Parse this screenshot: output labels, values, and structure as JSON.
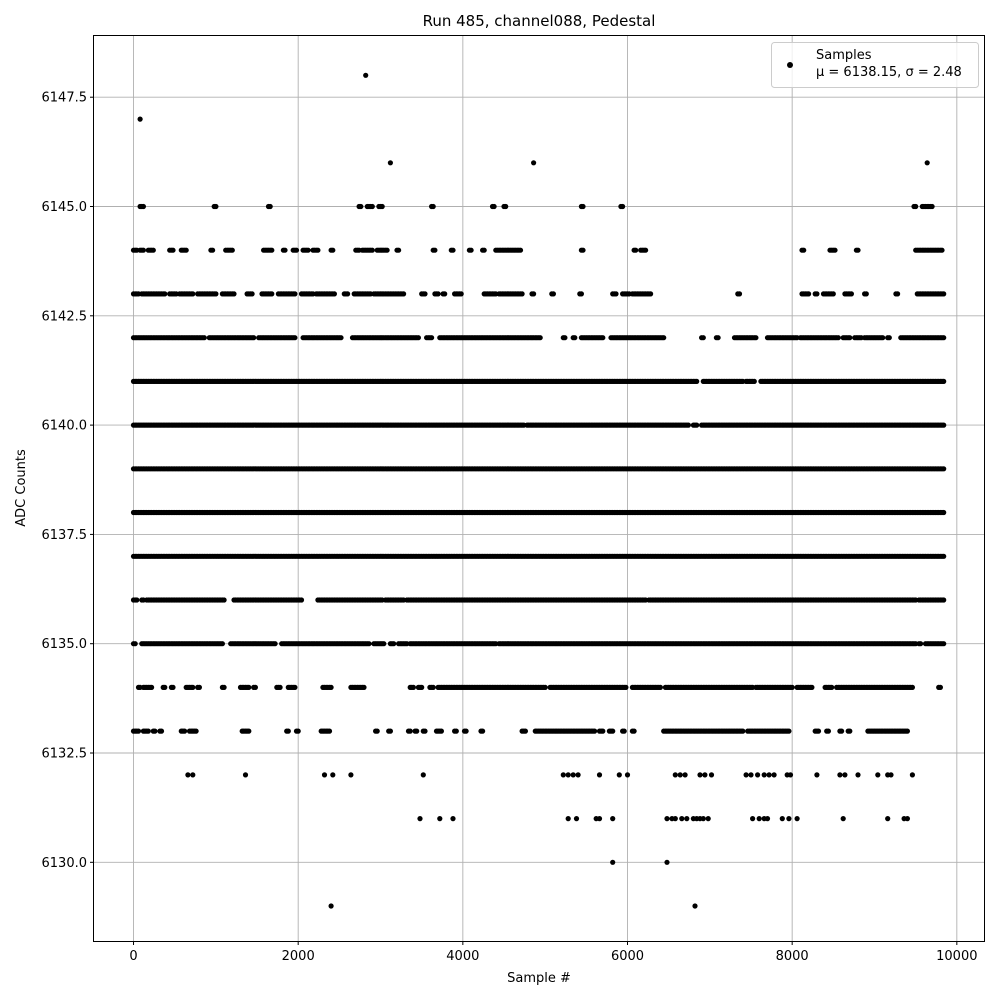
{
  "chart_data": {
    "type": "scatter",
    "title": "Run 485, channel088, Pedestal",
    "xlabel": "Sample #",
    "ylabel": "ADC Counts",
    "xlim": [
      -480,
      10330
    ],
    "ylim": [
      6128.2,
      6148.9
    ],
    "xticks": [
      0,
      2000,
      4000,
      6000,
      8000,
      10000
    ],
    "xtick_labels": [
      "0",
      "2000",
      "4000",
      "6000",
      "8000",
      "10000"
    ],
    "yticks": [
      6130.0,
      6132.5,
      6135.0,
      6137.5,
      6140.0,
      6142.5,
      6145.0,
      6147.5
    ],
    "ytick_labels": [
      "6130.0",
      "6132.5",
      "6135.0",
      "6137.5",
      "6140.0",
      "6142.5",
      "6145.0",
      "6147.5"
    ],
    "grid": true,
    "legend_position": "top-right",
    "legend": {
      "series_name": "Samples",
      "stats_label": "μ = 6138.15, σ = 2.48"
    },
    "marker_color": "#000000",
    "sample_count": 9840,
    "mean": 6138.15,
    "sigma": 2.48,
    "series": [
      {
        "name": "Samples",
        "levels": [
          {
            "y": 6129,
            "x": [
              2400,
              6820
            ]
          },
          {
            "y": 6130,
            "x": [
              5820,
              6480
            ]
          },
          {
            "y": 6131,
            "x": [
              3480,
              3720,
              3880,
              5280,
              5380,
              5620,
              5660,
              5820,
              6480,
              6540,
              6580,
              6660,
              6720,
              6800,
              6840,
              6880,
              6920,
              6980,
              7520,
              7600,
              7660,
              7700,
              7880,
              7960,
              8060,
              8620,
              9160,
              9360,
              9400
            ]
          },
          {
            "y": 6132,
            "x": [
              660,
              720,
              1360,
              2320,
              2420,
              2640,
              3520,
              5220,
              5280,
              5340,
              5400,
              5660,
              5900,
              6000,
              6580,
              6640,
              6700,
              6880,
              6940,
              7020,
              7440,
              7500,
              7580,
              7660,
              7720,
              7780,
              7940,
              7980,
              8300,
              8580,
              8640,
              8800,
              9040,
              9160,
              9200,
              9460
            ]
          },
          {
            "y": 6146,
            "x": [
              3120,
              4860,
              9640
            ]
          },
          {
            "y": 6147,
            "x": [
              80
            ]
          },
          {
            "y": 6148,
            "x": [
              2820
            ]
          }
        ],
        "bands": [
          {
            "y": 6133,
            "segments": [
              [
                0,
                60
              ],
              [
                120,
                180
              ],
              [
                240,
                260
              ],
              [
                320,
                340
              ],
              [
                580,
                620
              ],
              [
                680,
                760
              ],
              [
                1320,
                1400
              ],
              [
                1860,
                1880
              ],
              [
                1980,
                2000
              ],
              [
                2280,
                2380
              ],
              [
                2940,
                2960
              ],
              [
                3100,
                3120
              ],
              [
                3340,
                3360
              ],
              [
                3420,
                3440
              ],
              [
                3520,
                3540
              ],
              [
                3680,
                3740
              ],
              [
                3900,
                3920
              ],
              [
                4020,
                4040
              ],
              [
                4220,
                4240
              ],
              [
                4720,
                4760
              ],
              [
                4880,
                5600
              ],
              [
                5660,
                5700
              ],
              [
                5780,
                5820
              ],
              [
                5940,
                5960
              ],
              [
                6060,
                6080
              ],
              [
                6440,
                7400
              ],
              [
                7460,
                7960
              ],
              [
                8280,
                8320
              ],
              [
                8420,
                8440
              ],
              [
                8580,
                8600
              ],
              [
                8680,
                8700
              ],
              [
                8920,
                9400
              ]
            ]
          },
          {
            "y": 6134,
            "segments": [
              [
                60,
                80
              ],
              [
                120,
                180
              ],
              [
                200,
                220
              ],
              [
                360,
                380
              ],
              [
                460,
                480
              ],
              [
                640,
                720
              ],
              [
                780,
                800
              ],
              [
                1080,
                1100
              ],
              [
                1300,
                1400
              ],
              [
                1460,
                1480
              ],
              [
                1740,
                1780
              ],
              [
                1880,
                1960
              ],
              [
                2300,
                2400
              ],
              [
                2640,
                2800
              ],
              [
                3360,
                3400
              ],
              [
                3460,
                3500
              ],
              [
                3600,
                3640
              ],
              [
                3700,
                5000
              ],
              [
                5060,
                5980
              ],
              [
                6060,
                6400
              ],
              [
                6460,
                7520
              ],
              [
                7560,
                8000
              ],
              [
                8060,
                8240
              ],
              [
                8400,
                8480
              ],
              [
                8540,
                9460
              ],
              [
                9780,
                9800
              ]
            ]
          },
          {
            "y": 6135,
            "segments": [
              [
                0,
                20
              ],
              [
                100,
                1080
              ],
              [
                1180,
                1720
              ],
              [
                1800,
                2860
              ],
              [
                2920,
                3040
              ],
              [
                3120,
                3160
              ],
              [
                3220,
                3320
              ],
              [
                3360,
                4400
              ],
              [
                4440,
                9500
              ],
              [
                9540,
                9560
              ],
              [
                9620,
                9840
              ]
            ]
          },
          {
            "y": 6136,
            "segments": [
              [
                0,
                40
              ],
              [
                100,
                120
              ],
              [
                160,
                1100
              ],
              [
                1220,
                2040
              ],
              [
                2240,
                3020
              ],
              [
                3060,
                3280
              ],
              [
                3320,
                6220
              ],
              [
                6260,
                9500
              ],
              [
                9540,
                9840
              ]
            ]
          },
          {
            "y": 6137,
            "segments": [
              [
                0,
                9840
              ]
            ]
          },
          {
            "y": 6138,
            "segments": [
              [
                0,
                9840
              ]
            ]
          },
          {
            "y": 6139,
            "segments": [
              [
                0,
                9840
              ]
            ]
          },
          {
            "y": 6140,
            "segments": [
              [
                0,
                4740
              ],
              [
                4780,
                6740
              ],
              [
                6800,
                6840
              ],
              [
                6900,
                9840
              ]
            ]
          },
          {
            "y": 6141,
            "segments": [
              [
                0,
                6840
              ],
              [
                6920,
                7400
              ],
              [
                7440,
                7540
              ],
              [
                7620,
                9840
              ]
            ]
          },
          {
            "y": 6142,
            "segments": [
              [
                0,
                60
              ],
              [
                80,
                860
              ],
              [
                920,
                1460
              ],
              [
                1520,
                1960
              ],
              [
                2060,
                2520
              ],
              [
                2660,
                3460
              ],
              [
                3560,
                3620
              ],
              [
                3720,
                4940
              ],
              [
                5220,
                5240
              ],
              [
                5340,
                5360
              ],
              [
                5440,
                5700
              ],
              [
                5800,
                6440
              ],
              [
                6900,
                6920
              ],
              [
                7080,
                7100
              ],
              [
                7300,
                7560
              ],
              [
                7700,
                8060
              ],
              [
                8100,
                8560
              ],
              [
                8620,
                8700
              ],
              [
                8760,
                8840
              ],
              [
                8880,
                9100
              ],
              [
                9160,
                9180
              ],
              [
                9320,
                9840
              ]
            ]
          },
          {
            "y": 6143,
            "segments": [
              [
                0,
                60
              ],
              [
                100,
                380
              ],
              [
                440,
                520
              ],
              [
                560,
                720
              ],
              [
                780,
                1000
              ],
              [
                1080,
                1120
              ],
              [
                1140,
                1220
              ],
              [
                1380,
                1440
              ],
              [
                1560,
                1680
              ],
              [
                1760,
                1960
              ],
              [
                2040,
                2180
              ],
              [
                2220,
                2440
              ],
              [
                2560,
                2600
              ],
              [
                2680,
                2880
              ],
              [
                2920,
                3280
              ],
              [
                3500,
                3540
              ],
              [
                3660,
                3700
              ],
              [
                3760,
                3780
              ],
              [
                3900,
                3980
              ],
              [
                4260,
                4400
              ],
              [
                4440,
                4720
              ],
              [
                4840,
                4860
              ],
              [
                5080,
                5100
              ],
              [
                5420,
                5440
              ],
              [
                5820,
                5860
              ],
              [
                5940,
                6020
              ],
              [
                6060,
                6280
              ],
              [
                7340,
                7360
              ],
              [
                8120,
                8200
              ],
              [
                8280,
                8300
              ],
              [
                8380,
                8500
              ],
              [
                8640,
                8720
              ],
              [
                8880,
                8900
              ],
              [
                9260,
                9280
              ],
              [
                9520,
                9840
              ]
            ]
          },
          {
            "y": 6144,
            "segments": [
              [
                0,
                40
              ],
              [
                80,
                120
              ],
              [
                180,
                240
              ],
              [
                440,
                480
              ],
              [
                580,
                640
              ],
              [
                940,
                960
              ],
              [
                1120,
                1200
              ],
              [
                1580,
                1680
              ],
              [
                1820,
                1840
              ],
              [
                1940,
                1980
              ],
              [
                2060,
                2120
              ],
              [
                2180,
                2240
              ],
              [
                2400,
                2420
              ],
              [
                2700,
                2740
              ],
              [
                2780,
                2900
              ],
              [
                2960,
                3080
              ],
              [
                3200,
                3220
              ],
              [
                3640,
                3660
              ],
              [
                3860,
                3880
              ],
              [
                4080,
                4100
              ],
              [
                4240,
                4260
              ],
              [
                4400,
                4700
              ],
              [
                5440,
                5460
              ],
              [
                6080,
                6100
              ],
              [
                6160,
                6220
              ],
              [
                8120,
                8140
              ],
              [
                8460,
                8520
              ],
              [
                8780,
                8800
              ],
              [
                9500,
                9820
              ]
            ]
          },
          {
            "y": 6145,
            "segments": [
              [
                80,
                120
              ],
              [
                980,
                1000
              ],
              [
                1640,
                1660
              ],
              [
                2740,
                2760
              ],
              [
                2840,
                2900
              ],
              [
                2980,
                3020
              ],
              [
                3620,
                3640
              ],
              [
                4360,
                4380
              ],
              [
                4500,
                4520
              ],
              [
                5440,
                5460
              ],
              [
                5920,
                5940
              ],
              [
                9480,
                9500
              ],
              [
                9580,
                9700
              ]
            ]
          }
        ]
      }
    ]
  }
}
